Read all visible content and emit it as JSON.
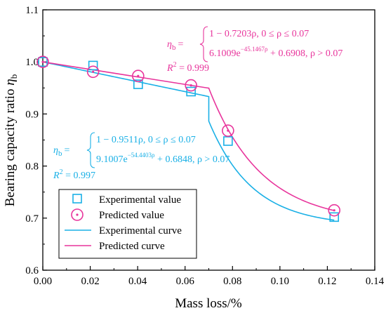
{
  "chart_data": {
    "type": "scatter",
    "xlabel": "Mass loss/%",
    "ylabel_text": "Bearing capacity ratio ",
    "ylabel_symbol": "η",
    "ylabel_subscript": "b",
    "xlim": [
      0,
      0.14
    ],
    "ylim": [
      0.6,
      1.1
    ],
    "xticks": [
      0,
      0.02,
      0.04,
      0.06,
      0.08,
      0.1,
      0.12,
      0.14
    ],
    "xtick_labels": [
      "0.00",
      "0.02",
      "0.04",
      "0.06",
      "0.08",
      "0.10",
      "0.12",
      "0.14"
    ],
    "yticks": [
      0.6,
      0.7,
      0.8,
      0.9,
      1.0,
      1.1
    ],
    "ytick_labels": [
      "0.6",
      "0.7",
      "0.8",
      "0.9",
      "1.0",
      "1.1"
    ],
    "grid": false,
    "legend_position": "bottom-left",
    "colors": {
      "experimental": "#1ab0e6",
      "predicted": "#e8359c"
    },
    "series": [
      {
        "name": "Experimental value",
        "kind": "points",
        "marker": "square",
        "x": [
          0.0,
          0.0212,
          0.0402,
          0.0625,
          0.0781,
          0.1229
        ],
        "y": [
          1.0,
          0.993,
          0.957,
          0.943,
          0.848,
          0.702
        ]
      },
      {
        "name": "Predicted value",
        "kind": "points",
        "marker": "circle-dot",
        "x": [
          0.0,
          0.0212,
          0.0402,
          0.0625,
          0.0781,
          0.1229
        ],
        "y": [
          1.0,
          0.981,
          0.973,
          0.955,
          0.868,
          0.715
        ]
      },
      {
        "name": "Experimental curve",
        "kind": "line",
        "segments": [
          {
            "type": "linear",
            "a": 1,
            "b": -0.9511,
            "x_from": 0,
            "x_to": 0.07
          },
          {
            "type": "exp",
            "A": 9.1007,
            "k": -54.4403,
            "C": 0.6848,
            "x_from": 0.07,
            "x_to": 0.1229
          }
        ]
      },
      {
        "name": "Predicted curve",
        "kind": "line",
        "segments": [
          {
            "type": "linear",
            "a": 1,
            "b": -0.7203,
            "x_from": 0,
            "x_to": 0.07
          },
          {
            "type": "exp",
            "A": 6.1009,
            "k": -45.1467,
            "C": 0.6908,
            "x_from": 0.07,
            "x_to": 0.1229
          }
        ]
      }
    ],
    "annotations": {
      "predicted": {
        "eta": "η",
        "sub": "b",
        "eq": "=",
        "line1": "1 − 0.7203ρ,  0 ≤ ρ ≤ 0.07",
        "line2_base": "6.1009e",
        "line2_exp": "−45.1467ρ",
        "line2_rest": " + 0.6908,  ρ > 0.07",
        "r2_label": "R",
        "r2_sup": "2",
        "r2_value": " = 0.999"
      },
      "experimental": {
        "eta": "η",
        "sub": "b",
        "eq": "=",
        "line1": "1 − 0.9511ρ,  0 ≤ ρ ≤ 0.07",
        "line2_base": "9.1007e",
        "line2_exp": "−54.4403ρ",
        "line2_rest": " + 0.6848,  ρ > 0.07",
        "r2_label": "R",
        "r2_sup": "2",
        "r2_value": " = 0.997"
      }
    }
  }
}
